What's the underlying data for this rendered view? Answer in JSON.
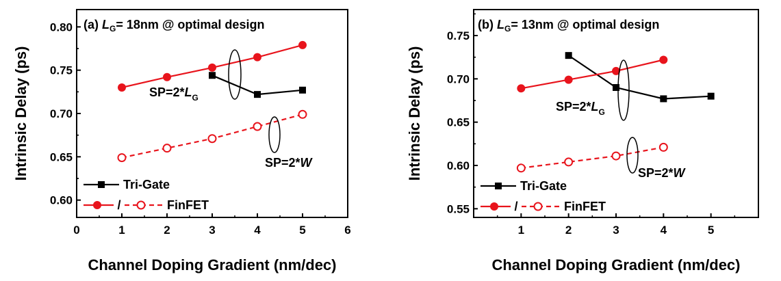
{
  "chart_data": [
    {
      "type": "line",
      "title_prefix": "(a)",
      "title_var": "L",
      "title_sub": "G",
      "title_rest": "= 18nm @ optimal design",
      "xlabel": "Channel Doping Gradient (nm/dec)",
      "ylabel": "Intrinsic Delay (ps)",
      "xlim": [
        0,
        6
      ],
      "ylim": [
        0.58,
        0.82
      ],
      "xticks": [
        0,
        1,
        2,
        3,
        4,
        5,
        6
      ],
      "xtick_labels": [
        "0",
        "1",
        "2",
        "3",
        "4",
        "5",
        "6"
      ],
      "yticks": [
        0.6,
        0.65,
        0.7,
        0.75,
        0.8
      ],
      "ytick_labels": [
        "0.60",
        "0.65",
        "0.70",
        "0.75",
        "0.80"
      ],
      "series": [
        {
          "name": "Tri-Gate",
          "style": "solid",
          "marker": "square",
          "color": "#000000",
          "x": [
            3,
            4,
            5
          ],
          "y": [
            0.744,
            0.722,
            0.727
          ]
        },
        {
          "name": "FinFET",
          "style": "solid",
          "marker": "filled-circle",
          "color": "#e8141c",
          "x": [
            1,
            2,
            3,
            4,
            5
          ],
          "y": [
            0.73,
            0.742,
            0.753,
            0.765,
            0.779
          ]
        },
        {
          "name": "FinFET",
          "style": "dashed",
          "marker": "open-circle",
          "color": "#e8141c",
          "x": [
            1,
            2,
            3,
            4,
            5
          ],
          "y": [
            0.649,
            0.66,
            0.671,
            0.685,
            0.699
          ]
        }
      ],
      "annotations": [
        {
          "prefix": "SP=2*",
          "var": "L",
          "sub": "G"
        },
        {
          "prefix": "SP=2*",
          "var": "W",
          "sub": ""
        }
      ],
      "legend": {
        "trigate": "Tri-Gate",
        "slash": "/",
        "finfet": "FinFET",
        "placement": "bottom-left"
      }
    },
    {
      "type": "line",
      "title_prefix": "(b)",
      "title_var": "L",
      "title_sub": "G",
      "title_rest": "= 13nm @ optimal design",
      "xlabel": "Channel Doping Gradient (nm/dec)",
      "ylabel": "Intrinsic Delay (ps)",
      "xlim": [
        0,
        6
      ],
      "ylim": [
        0.54,
        0.78
      ],
      "xticks": [
        1,
        2,
        3,
        4,
        5
      ],
      "xtick_labels": [
        "1",
        "2",
        "3",
        "4",
        "5"
      ],
      "yticks": [
        0.55,
        0.6,
        0.65,
        0.7,
        0.75
      ],
      "ytick_labels": [
        "0.55",
        "0.60",
        "0.65",
        "0.70",
        "0.75"
      ],
      "series": [
        {
          "name": "Tri-Gate",
          "style": "solid",
          "marker": "square",
          "color": "#000000",
          "x": [
            2,
            3,
            4,
            5
          ],
          "y": [
            0.727,
            0.69,
            0.677,
            0.68
          ]
        },
        {
          "name": "FinFET",
          "style": "solid",
          "marker": "filled-circle",
          "color": "#e8141c",
          "x": [
            1,
            2,
            3,
            4
          ],
          "y": [
            0.689,
            0.699,
            0.709,
            0.722
          ]
        },
        {
          "name": "FinFET",
          "style": "dashed",
          "marker": "open-circle",
          "color": "#e8141c",
          "x": [
            1,
            2,
            3,
            4
          ],
          "y": [
            0.597,
            0.604,
            0.611,
            0.621
          ]
        }
      ],
      "annotations": [
        {
          "prefix": "SP=2*",
          "var": "L",
          "sub": "G"
        },
        {
          "prefix": "SP=2*",
          "var": "W",
          "sub": ""
        }
      ],
      "legend": {
        "trigate": "Tri-Gate",
        "slash": "/",
        "finfet": "FinFET",
        "placement": "bottom-left"
      }
    }
  ]
}
